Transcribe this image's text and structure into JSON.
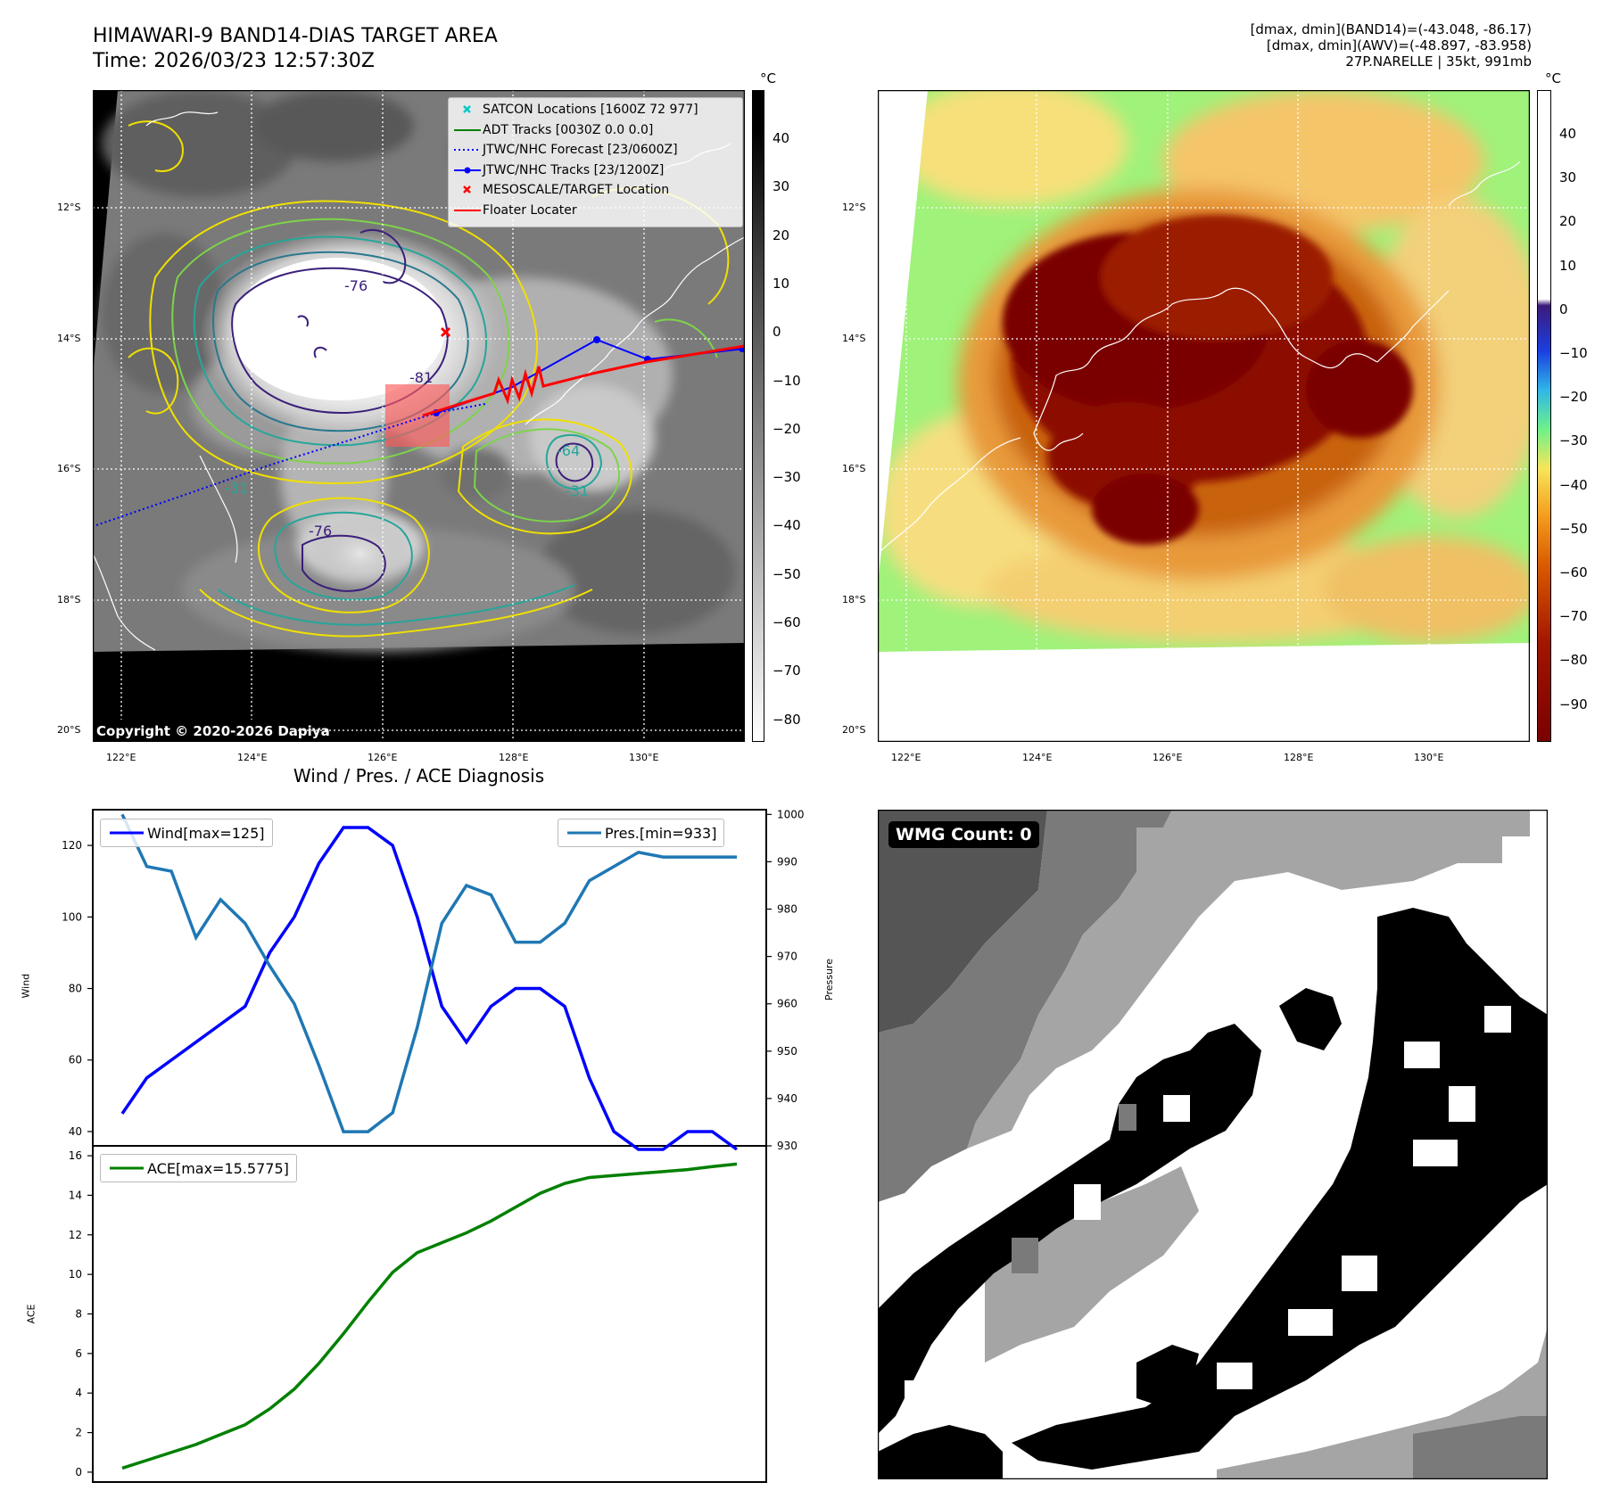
{
  "header": {
    "title": "HIMAWARI-9 BAND14-DIAS TARGET AREA",
    "time": "Time: 2026/03/23 12:57:30Z",
    "right_line1": "[dmax, dmin](BAND14)=(-43.048, -86.17)",
    "right_line2": "[dmax, dmin](AWV)=(-48.897, -83.958)",
    "right_line3": "27P.NARELLE | 35kt, 991mb"
  },
  "map": {
    "lat_labels": [
      "12°S",
      "14°S",
      "16°S",
      "18°S",
      "20°S"
    ],
    "lon_labels": [
      "122°E",
      "124°E",
      "126°E",
      "128°E",
      "130°E"
    ],
    "copyright": "Copyright © 2020-2026 Dapiya",
    "contour_labels": [
      "-76",
      "-81",
      "-64",
      "-76",
      "-31",
      "-31"
    ],
    "legend": [
      {
        "label": "SATCON Locations [1600Z 72 977]",
        "color": "#00c8c8",
        "symbol": "x"
      },
      {
        "label": "ADT Tracks [0030Z 0.0 0.0]",
        "color": "#008000",
        "symbol": "line"
      },
      {
        "label": "JTWC/NHC Forecast [23/0600Z]",
        "color": "#0000ff",
        "symbol": "dotted"
      },
      {
        "label": "JTWC/NHC Tracks [23/1200Z]",
        "color": "#0000ff",
        "symbol": "line-dot"
      },
      {
        "label": "MESOSCALE/TARGET Location",
        "color": "#ff0000",
        "symbol": "x"
      },
      {
        "label": "Floater Locater",
        "color": "#ff0000",
        "symbol": "line"
      }
    ]
  },
  "colorbar_gray": {
    "unit": "°C",
    "ticks": [
      "40",
      "30",
      "20",
      "10",
      "0",
      "−10",
      "−20",
      "−30",
      "−40",
      "−50",
      "−60",
      "−70",
      "−80"
    ]
  },
  "colorbar_color": {
    "unit": "°C",
    "ticks": [
      "40",
      "30",
      "20",
      "10",
      "0",
      "−10",
      "−20",
      "−30",
      "−40",
      "−50",
      "−60",
      "−70",
      "−80",
      "−90"
    ]
  },
  "wmg": {
    "label": "WMG Count: 0"
  },
  "chart_data": [
    {
      "type": "line",
      "title": "Wind / Pres. / ACE Diagnosis",
      "ylabel": "Wind",
      "y2label": "Pressure",
      "ylim": [
        36,
        130
      ],
      "y2lim": [
        930,
        1001
      ],
      "yticks": [
        "40",
        "60",
        "80",
        "100",
        "120"
      ],
      "y2ticks": [
        "930",
        "940",
        "950",
        "960",
        "970",
        "980",
        "990",
        "1000"
      ],
      "legend_left": "Wind[max=125]",
      "legend_right": "Pres.[min=933]",
      "series": [
        {
          "name": "Wind[max=125]",
          "color": "#0000ff",
          "axis": "left",
          "values": [
            45,
            55,
            60,
            65,
            70,
            75,
            90,
            100,
            115,
            125,
            125,
            120,
            100,
            75,
            65,
            75,
            80,
            80,
            75,
            55,
            40,
            35,
            35,
            40,
            40,
            35
          ]
        },
        {
          "name": "Pres.[min=933]",
          "color": "#1f77b4",
          "axis": "right",
          "values": [
            1000,
            989,
            988,
            974,
            982,
            977,
            968,
            960,
            947,
            933,
            933,
            937,
            955,
            977,
            985,
            983,
            973,
            973,
            977,
            986,
            989,
            992,
            991,
            991,
            991,
            991
          ]
        }
      ]
    },
    {
      "type": "line",
      "ylabel": "ACE",
      "ylim": [
        -0.5,
        16.5
      ],
      "yticks": [
        "0",
        "2",
        "4",
        "6",
        "8",
        "10",
        "12",
        "14",
        "16"
      ],
      "legend": "ACE[max=15.5775]",
      "series": [
        {
          "name": "ACE[max=15.5775]",
          "color": "#008000",
          "values": [
            0.2,
            0.6,
            1.0,
            1.4,
            1.9,
            2.4,
            3.2,
            4.2,
            5.5,
            7.0,
            8.6,
            10.1,
            11.1,
            11.6,
            12.1,
            12.7,
            13.4,
            14.1,
            14.6,
            14.9,
            15.0,
            15.1,
            15.2,
            15.3,
            15.45,
            15.58
          ]
        }
      ]
    }
  ]
}
